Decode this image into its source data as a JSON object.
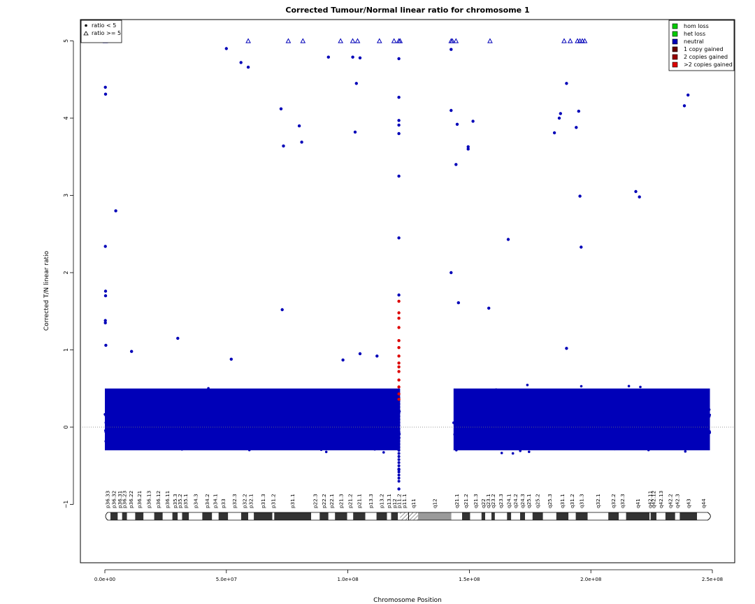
{
  "chart_data": {
    "type": "scatter",
    "title": "Corrected Tumour/Normal linear ratio for chromosome  1",
    "xlabel": "Chromosome Position",
    "ylabel": "Corrected T/N linear ratio",
    "xlim": [
      0,
      250000000
    ],
    "ylim": [
      -1.8,
      5.3
    ],
    "x_ticks": [
      0,
      50000000,
      100000000,
      150000000,
      200000000,
      250000000
    ],
    "x_tick_labels": [
      "0.0e+00",
      "5.0e+07",
      "1.0e+08",
      "1.5e+08",
      "2.0e+08",
      "2.5e+08"
    ],
    "y_ticks": [
      -1,
      0,
      1,
      2,
      3,
      4,
      5
    ],
    "y_tick_labels": [
      "−1",
      "0",
      "1",
      "2",
      "3",
      "4",
      "5"
    ],
    "reference_line": 0,
    "shape_legend": [
      {
        "symbol": "circle",
        "label": "ratio < 5"
      },
      {
        "symbol": "triangle",
        "label": "ratio >= 5"
      }
    ],
    "legend": [
      {
        "label": "hom loss",
        "color": "#00cc00"
      },
      {
        "label": "het loss",
        "color": "#00cc00"
      },
      {
        "label": "neutral",
        "color": "#0000b8"
      },
      {
        "label": "1 copy gained",
        "color": "#660000"
      },
      {
        "label": "2 copies gained",
        "color": "#990000"
      },
      {
        "label": ">2 copies gained",
        "color": "#dd0000"
      }
    ],
    "colors": {
      "neutral": "#0000b8",
      "gained": "#dd0000"
    },
    "dense_bands": [
      {
        "x_range": [
          0,
          121500000
        ],
        "y_range": [
          -0.45,
          0.75
        ],
        "color": "neutral"
      },
      {
        "x_range": [
          143500000,
          249000000
        ],
        "y_range": [
          -0.45,
          0.75
        ],
        "color": "neutral"
      }
    ],
    "centromere_gap": [
      121500000,
      143500000
    ],
    "outliers": [
      {
        "x": 200000,
        "y": 4.4
      },
      {
        "x": 300000,
        "y": 4.31
      },
      {
        "x": 200000,
        "y": 2.34
      },
      {
        "x": 300000,
        "y": 1.76
      },
      {
        "x": 300000,
        "y": 1.7
      },
      {
        "x": 200000,
        "y": 1.38
      },
      {
        "x": 200000,
        "y": 1.35
      },
      {
        "x": 400000,
        "y": 1.06
      },
      {
        "x": 4500000,
        "y": 2.8
      },
      {
        "x": 11000000,
        "y": 0.98
      },
      {
        "x": 30000000,
        "y": 1.15
      },
      {
        "x": 50000000,
        "y": 4.9
      },
      {
        "x": 52000000,
        "y": 0.88
      },
      {
        "x": 56000000,
        "y": 4.72
      },
      {
        "x": 59000000,
        "y": 4.66
      },
      {
        "x": 72500000,
        "y": 4.12
      },
      {
        "x": 73000000,
        "y": 1.52
      },
      {
        "x": 73500000,
        "y": 3.64
      },
      {
        "x": 80000000,
        "y": 3.9
      },
      {
        "x": 81000000,
        "y": 3.69
      },
      {
        "x": 92000000,
        "y": 4.79
      },
      {
        "x": 98000000,
        "y": 0.87
      },
      {
        "x": 102000000,
        "y": 4.79
      },
      {
        "x": 103000000,
        "y": 3.82
      },
      {
        "x": 103500000,
        "y": 4.45
      },
      {
        "x": 105000000,
        "y": 4.78
      },
      {
        "x": 105000000,
        "y": 0.95
      },
      {
        "x": 112000000,
        "y": 0.92
      },
      {
        "x": 121000000,
        "y": 4.77
      },
      {
        "x": 121000000,
        "y": 4.27
      },
      {
        "x": 121000000,
        "y": 3.97
      },
      {
        "x": 121000000,
        "y": 3.91
      },
      {
        "x": 121000000,
        "y": 3.8
      },
      {
        "x": 121000000,
        "y": 3.25
      },
      {
        "x": 121000000,
        "y": 2.45
      },
      {
        "x": 121000000,
        "y": 1.71
      },
      {
        "x": 121000000,
        "y": -0.55
      },
      {
        "x": 121000000,
        "y": -0.8
      },
      {
        "x": 142500000,
        "y": 4.89
      },
      {
        "x": 142500000,
        "y": 4.1
      },
      {
        "x": 142500000,
        "y": 2.0
      },
      {
        "x": 144500000,
        "y": 3.4
      },
      {
        "x": 145000000,
        "y": 3.92
      },
      {
        "x": 145500000,
        "y": 1.61
      },
      {
        "x": 149500000,
        "y": 3.6
      },
      {
        "x": 149500000,
        "y": 3.63
      },
      {
        "x": 151500000,
        "y": 3.96
      },
      {
        "x": 158000000,
        "y": 1.54
      },
      {
        "x": 166000000,
        "y": 2.43
      },
      {
        "x": 185000000,
        "y": 3.81
      },
      {
        "x": 187000000,
        "y": 4.0
      },
      {
        "x": 187500000,
        "y": 4.06
      },
      {
        "x": 190000000,
        "y": 4.45
      },
      {
        "x": 190000000,
        "y": 1.02
      },
      {
        "x": 194000000,
        "y": 3.88
      },
      {
        "x": 195000000,
        "y": 4.09
      },
      {
        "x": 195500000,
        "y": 2.99
      },
      {
        "x": 196000000,
        "y": 2.33
      },
      {
        "x": 218500000,
        "y": 3.05
      },
      {
        "x": 220000000,
        "y": 2.98
      },
      {
        "x": 238500000,
        "y": 4.16
      },
      {
        "x": 240000000,
        "y": 4.3
      }
    ],
    "gained_points": [
      {
        "x": 121000000,
        "y": 1.63
      },
      {
        "x": 121000000,
        "y": 1.48
      },
      {
        "x": 121000000,
        "y": 1.41
      },
      {
        "x": 121000000,
        "y": 1.29
      },
      {
        "x": 121000000,
        "y": 1.12
      },
      {
        "x": 121000000,
        "y": 1.03
      },
      {
        "x": 121000000,
        "y": 0.92
      },
      {
        "x": 121000000,
        "y": 0.83
      },
      {
        "x": 121000000,
        "y": 0.78
      },
      {
        "x": 121000000,
        "y": 0.72
      },
      {
        "x": 121000000,
        "y": 0.61
      },
      {
        "x": 121000000,
        "y": 0.52
      },
      {
        "x": 121000000,
        "y": 0.43
      },
      {
        "x": 121000000,
        "y": 0.36
      }
    ],
    "capped_points": [
      {
        "x": 200000,
        "y": 5
      },
      {
        "x": 59000000,
        "y": 5
      },
      {
        "x": 75500000,
        "y": 5
      },
      {
        "x": 81500000,
        "y": 5
      },
      {
        "x": 97000000,
        "y": 5
      },
      {
        "x": 102000000,
        "y": 5
      },
      {
        "x": 104000000,
        "y": 5
      },
      {
        "x": 113000000,
        "y": 5
      },
      {
        "x": 119000000,
        "y": 5
      },
      {
        "x": 121000000,
        "y": 5
      },
      {
        "x": 121500000,
        "y": 5
      },
      {
        "x": 142500000,
        "y": 5
      },
      {
        "x": 143000000,
        "y": 5
      },
      {
        "x": 144500000,
        "y": 5
      },
      {
        "x": 158500000,
        "y": 5
      },
      {
        "x": 189000000,
        "y": 5
      },
      {
        "x": 191500000,
        "y": 5
      },
      {
        "x": 194500000,
        "y": 5
      },
      {
        "x": 195500000,
        "y": 5
      },
      {
        "x": 196500000,
        "y": 5
      },
      {
        "x": 197500000,
        "y": 5
      }
    ],
    "ideogram": {
      "bands": [
        {
          "name": "p36.33",
          "start": 0,
          "end": 2300000,
          "stain": "gneg"
        },
        {
          "name": "p36.32",
          "start": 2300000,
          "end": 5300000,
          "stain": "gpos"
        },
        {
          "name": "p36.31",
          "start": 5300000,
          "end": 7100000,
          "stain": "gneg"
        },
        {
          "name": "p36.23",
          "start": 7100000,
          "end": 9100000,
          "stain": "gpos"
        },
        {
          "name": "p36.22",
          "start": 9100000,
          "end": 12500000,
          "stain": "gneg"
        },
        {
          "name": "p36.21",
          "start": 12500000,
          "end": 15900000,
          "stain": "gpos"
        },
        {
          "name": "p36.13",
          "start": 15900000,
          "end": 20300000,
          "stain": "gneg"
        },
        {
          "name": "p36.12",
          "start": 20300000,
          "end": 23800000,
          "stain": "gpos"
        },
        {
          "name": "p36.11",
          "start": 23800000,
          "end": 27800000,
          "stain": "gneg"
        },
        {
          "name": "p35.3",
          "start": 27800000,
          "end": 30000000,
          "stain": "gpos"
        },
        {
          "name": "p35.2",
          "start": 30000000,
          "end": 31800000,
          "stain": "gneg"
        },
        {
          "name": "p35.1",
          "start": 31800000,
          "end": 34600000,
          "stain": "gpos"
        },
        {
          "name": "p34.3",
          "start": 34600000,
          "end": 40100000,
          "stain": "gneg"
        },
        {
          "name": "p34.2",
          "start": 40100000,
          "end": 44100000,
          "stain": "gpos"
        },
        {
          "name": "p34.1",
          "start": 44100000,
          "end": 46800000,
          "stain": "gneg"
        },
        {
          "name": "p33",
          "start": 46800000,
          "end": 50700000,
          "stain": "gpos"
        },
        {
          "name": "p32.3",
          "start": 50700000,
          "end": 56100000,
          "stain": "gneg"
        },
        {
          "name": "p32.2",
          "start": 56100000,
          "end": 59000000,
          "stain": "gpos"
        },
        {
          "name": "p32.1",
          "start": 59000000,
          "end": 61300000,
          "stain": "gneg"
        },
        {
          "name": "p31.3",
          "start": 61300000,
          "end": 68900000,
          "stain": "gpos"
        },
        {
          "name": "p31.2",
          "start": 68900000,
          "end": 69700000,
          "stain": "gneg"
        },
        {
          "name": "p31.1",
          "start": 69700000,
          "end": 84900000,
          "stain": "gpos"
        },
        {
          "name": "p22.3",
          "start": 84900000,
          "end": 88400000,
          "stain": "gneg"
        },
        {
          "name": "p22.2",
          "start": 88400000,
          "end": 92000000,
          "stain": "gpos"
        },
        {
          "name": "p22.1",
          "start": 92000000,
          "end": 94700000,
          "stain": "gneg"
        },
        {
          "name": "p21.3",
          "start": 94700000,
          "end": 99700000,
          "stain": "gpos"
        },
        {
          "name": "p21.2",
          "start": 99700000,
          "end": 102200000,
          "stain": "gneg"
        },
        {
          "name": "p21.1",
          "start": 102200000,
          "end": 107200000,
          "stain": "gpos"
        },
        {
          "name": "p13.3",
          "start": 107200000,
          "end": 111800000,
          "stain": "gneg"
        },
        {
          "name": "p13.2",
          "start": 111800000,
          "end": 116100000,
          "stain": "gpos"
        },
        {
          "name": "p13.1",
          "start": 116100000,
          "end": 117800000,
          "stain": "gneg"
        },
        {
          "name": "p12",
          "start": 117800000,
          "end": 120600000,
          "stain": "gpos"
        },
        {
          "name": "p11.2",
          "start": 120600000,
          "end": 121500000,
          "stain": "gneg"
        },
        {
          "name": "p11.1",
          "start": 121500000,
          "end": 125000000,
          "stain": "acen"
        },
        {
          "name": "q11",
          "start": 125000000,
          "end": 128900000,
          "stain": "acen"
        },
        {
          "name": "q12",
          "start": 128900000,
          "end": 142600000,
          "stain": "gvar"
        },
        {
          "name": "q21.1",
          "start": 142600000,
          "end": 147000000,
          "stain": "gneg"
        },
        {
          "name": "q21.2",
          "start": 147000000,
          "end": 150300000,
          "stain": "gpos"
        },
        {
          "name": "q21.3",
          "start": 150300000,
          "end": 155000000,
          "stain": "gneg"
        },
        {
          "name": "q22",
          "start": 155000000,
          "end": 156500000,
          "stain": "gpos"
        },
        {
          "name": "q23.1",
          "start": 156500000,
          "end": 159100000,
          "stain": "gneg"
        },
        {
          "name": "q23.2",
          "start": 159100000,
          "end": 160500000,
          "stain": "gpos"
        },
        {
          "name": "q23.3",
          "start": 160500000,
          "end": 165500000,
          "stain": "gneg"
        },
        {
          "name": "q24.1",
          "start": 165500000,
          "end": 167200000,
          "stain": "gpos"
        },
        {
          "name": "q24.2",
          "start": 167200000,
          "end": 170900000,
          "stain": "gneg"
        },
        {
          "name": "q24.3",
          "start": 170900000,
          "end": 172900000,
          "stain": "gpos"
        },
        {
          "name": "q25.1",
          "start": 172900000,
          "end": 176000000,
          "stain": "gneg"
        },
        {
          "name": "q25.2",
          "start": 176000000,
          "end": 180300000,
          "stain": "gpos"
        },
        {
          "name": "q25.3",
          "start": 180300000,
          "end": 185800000,
          "stain": "gneg"
        },
        {
          "name": "q31.1",
          "start": 185800000,
          "end": 190800000,
          "stain": "gpos"
        },
        {
          "name": "q31.2",
          "start": 190800000,
          "end": 193800000,
          "stain": "gneg"
        },
        {
          "name": "q31.3",
          "start": 193800000,
          "end": 198700000,
          "stain": "gpos"
        },
        {
          "name": "q32.1",
          "start": 198700000,
          "end": 207200000,
          "stain": "gneg"
        },
        {
          "name": "q32.2",
          "start": 207200000,
          "end": 211500000,
          "stain": "gpos"
        },
        {
          "name": "q32.3",
          "start": 211500000,
          "end": 214500000,
          "stain": "gneg"
        },
        {
          "name": "q41",
          "start": 214500000,
          "end": 224100000,
          "stain": "gpos"
        },
        {
          "name": "q42.11",
          "start": 224100000,
          "end": 224600000,
          "stain": "gneg"
        },
        {
          "name": "q42.12",
          "start": 224600000,
          "end": 227000000,
          "stain": "gpos"
        },
        {
          "name": "q42.13",
          "start": 227000000,
          "end": 230700000,
          "stain": "gneg"
        },
        {
          "name": "q42.2",
          "start": 230700000,
          "end": 234700000,
          "stain": "gpos"
        },
        {
          "name": "q42.3",
          "start": 234700000,
          "end": 236600000,
          "stain": "gneg"
        },
        {
          "name": "q43",
          "start": 236600000,
          "end": 243700000,
          "stain": "gpos"
        },
        {
          "name": "q44",
          "start": 243700000,
          "end": 249250621,
          "stain": "gneg"
        }
      ]
    }
  }
}
